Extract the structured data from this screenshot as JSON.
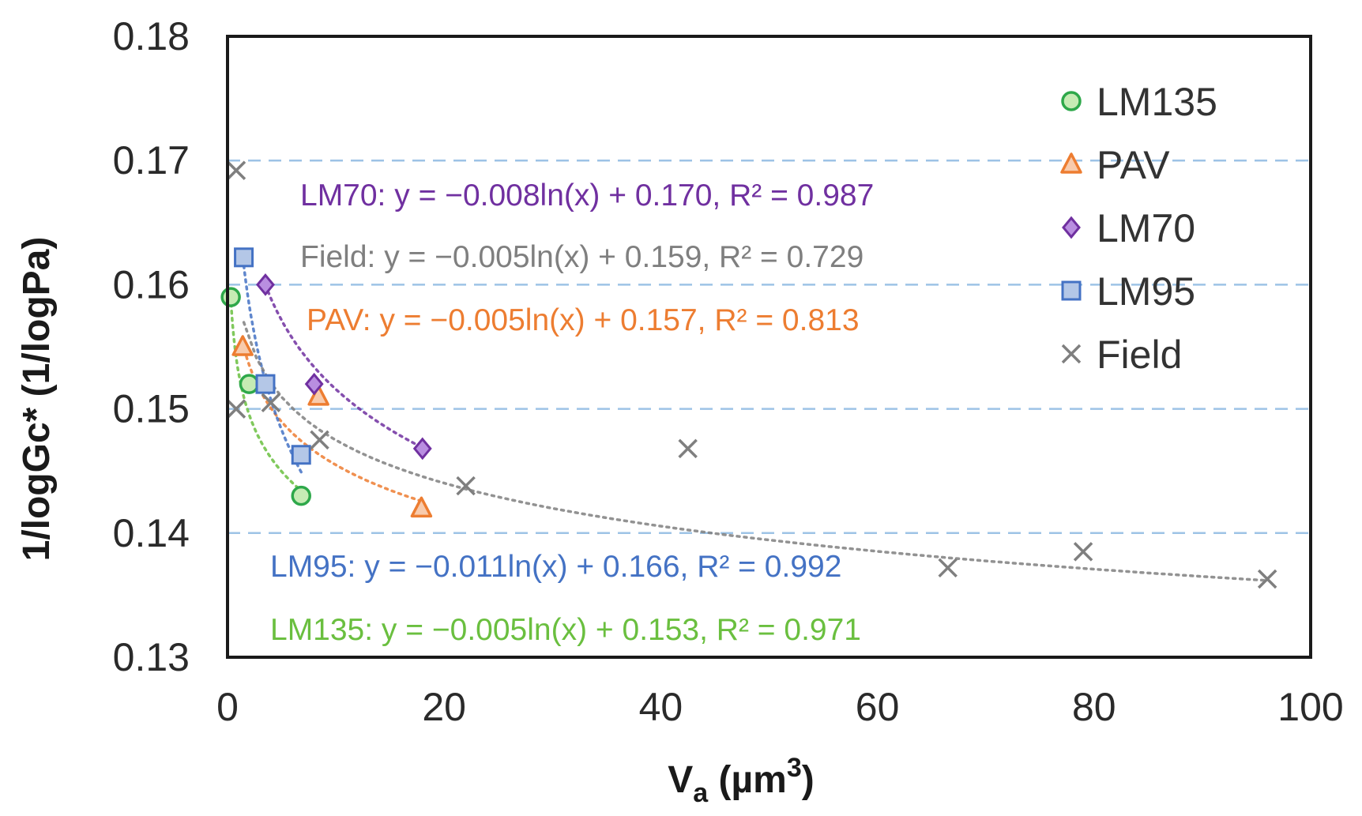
{
  "chart_data": {
    "type": "scatter",
    "xlabel": {
      "main": "V",
      "sub": "a",
      "unit_open": " (µm",
      "sup": "3",
      "unit_close": ")"
    },
    "ylabel": "1/logGc* (1/logPa)",
    "xlim": [
      0,
      100
    ],
    "ylim": [
      0.13,
      0.18
    ],
    "x_ticks": [
      0,
      20,
      40,
      60,
      80,
      100
    ],
    "x_tick_labels": [
      "0",
      "20",
      "40",
      "60",
      "80",
      "100"
    ],
    "y_ticks": [
      0.13,
      0.14,
      0.15,
      0.16,
      0.17,
      0.18
    ],
    "y_tick_labels": [
      "0.13",
      "0.14",
      "0.15",
      "0.16",
      "0.17",
      "0.18"
    ],
    "gridlines_y": [
      0.14,
      0.15,
      0.16,
      0.17
    ],
    "legend_position": "top-right",
    "series": [
      {
        "name": "LM135",
        "marker": "circle",
        "color": "#6abf3f",
        "fill": "#c6ebb4",
        "stroke": "#2ea84a",
        "x": [
          0.3,
          2.0,
          6.8
        ],
        "y": [
          0.159,
          0.152,
          0.143
        ],
        "fit": {
          "a": -0.005,
          "b": 0.153,
          "x_range": [
            0.3,
            6.8
          ]
        },
        "equation": "LM135: y = −0.005ln(x) + 0.153, R² = 0.971"
      },
      {
        "name": "PAV",
        "marker": "triangle",
        "color": "#ed7d31",
        "fill": "#f8cbad",
        "stroke": "#ed7d31",
        "x": [
          1.4,
          8.4,
          17.9
        ],
        "y": [
          0.155,
          0.151,
          0.142
        ],
        "fit": {
          "a": -0.005,
          "b": 0.157,
          "x_range": [
            1.4,
            17.9
          ]
        },
        "equation": "PAV: y = −0.005ln(x) + 0.157, R² = 0.813"
      },
      {
        "name": "LM70",
        "marker": "diamond",
        "color": "#7030a0",
        "fill": "#b98ee0",
        "stroke": "#7030a0",
        "x": [
          3.5,
          8.0,
          18.0
        ],
        "y": [
          0.16,
          0.152,
          0.1468
        ],
        "fit": {
          "a": -0.008,
          "b": 0.17,
          "x_range": [
            3.5,
            18.0
          ]
        },
        "equation": "LM70: y = −0.008ln(x) + 0.170, R² = 0.987"
      },
      {
        "name": "LM95",
        "marker": "square",
        "color": "#4472c4",
        "fill": "#b4c7e7",
        "stroke": "#4472c4",
        "x": [
          1.5,
          3.5,
          6.8
        ],
        "y": [
          0.1622,
          0.152,
          0.1463
        ],
        "fit": {
          "a": -0.011,
          "b": 0.166,
          "x_range": [
            1.5,
            6.8
          ]
        },
        "equation": "LM95: y = −0.011ln(x) + 0.166, R² = 0.992"
      },
      {
        "name": "Field",
        "marker": "x",
        "color": "#7f7f7f",
        "fill": "#7f7f7f",
        "stroke": "#7f7f7f",
        "x": [
          0.8,
          0.8,
          4.0,
          8.5,
          22.0,
          42.5,
          66.5,
          79.0,
          96.0
        ],
        "y": [
          0.1692,
          0.15,
          0.1505,
          0.1475,
          0.1438,
          0.1468,
          0.1372,
          0.1385,
          0.1363
        ],
        "fit": {
          "a": -0.005,
          "b": 0.159,
          "x_range": [
            1.5,
            96.0
          ]
        },
        "equation": "Field: y = −0.005ln(x) + 0.159, R² = 0.729"
      }
    ],
    "equation_order": [
      "LM70",
      "Field",
      "PAV",
      "LM95",
      "LM135"
    ]
  }
}
